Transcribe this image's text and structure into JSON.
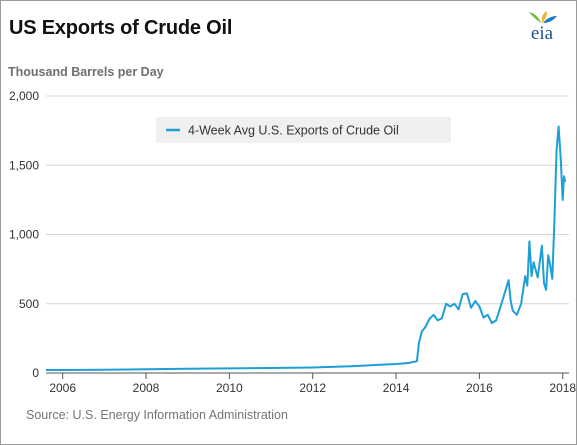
{
  "title": "US Exports of Crude Oil",
  "logo_text": "eia",
  "source": "Source: U.S. Energy Information Administration",
  "colors": {
    "series": "#1e9fd6",
    "grid": "#d6d6d6",
    "legend_bg": "#f0f0f0",
    "logo_leaf_green": "#7ab648",
    "logo_leaf_yellow": "#f2b233",
    "logo_leaf_blue": "#1f79c1"
  },
  "chart_data": {
    "type": "line",
    "title": "US Exports of Crude Oil",
    "ylabel": "Thousand Barrels per Day",
    "xlabel": "",
    "xlim": [
      2005.6,
      2018.15
    ],
    "ylim": [
      0,
      2000
    ],
    "x_ticks": [
      2006,
      2008,
      2010,
      2012,
      2014,
      2016,
      2018
    ],
    "x_tick_labels": [
      "2006",
      "2008",
      "2010",
      "2012",
      "2014",
      "2016",
      "2018"
    ],
    "y_ticks": [
      0,
      500,
      1000,
      1500,
      2000
    ],
    "y_tick_labels": [
      "0",
      "500",
      "1,000",
      "1,500",
      "2,000"
    ],
    "grid": "horizontal",
    "legend": {
      "position": "top-center"
    },
    "series": [
      {
        "name": "4-Week Avg U.S. Exports of Crude Oil",
        "points": [
          [
            2005.6,
            22
          ],
          [
            2006.0,
            22
          ],
          [
            2007.0,
            24
          ],
          [
            2008.0,
            27
          ],
          [
            2009.0,
            30
          ],
          [
            2010.0,
            33
          ],
          [
            2011.0,
            36
          ],
          [
            2012.0,
            40
          ],
          [
            2013.0,
            50
          ],
          [
            2013.5,
            58
          ],
          [
            2014.0,
            65
          ],
          [
            2014.3,
            72
          ],
          [
            2014.5,
            85
          ],
          [
            2014.55,
            220
          ],
          [
            2014.62,
            300
          ],
          [
            2014.7,
            330
          ],
          [
            2014.8,
            390
          ],
          [
            2014.9,
            420
          ],
          [
            2015.0,
            380
          ],
          [
            2015.1,
            395
          ],
          [
            2015.2,
            500
          ],
          [
            2015.3,
            480
          ],
          [
            2015.4,
            500
          ],
          [
            2015.5,
            460
          ],
          [
            2015.6,
            570
          ],
          [
            2015.7,
            575
          ],
          [
            2015.8,
            470
          ],
          [
            2015.9,
            520
          ],
          [
            2016.0,
            480
          ],
          [
            2016.1,
            400
          ],
          [
            2016.2,
            420
          ],
          [
            2016.3,
            360
          ],
          [
            2016.4,
            380
          ],
          [
            2016.5,
            470
          ],
          [
            2016.6,
            570
          ],
          [
            2016.7,
            670
          ],
          [
            2016.75,
            520
          ],
          [
            2016.8,
            450
          ],
          [
            2016.9,
            420
          ],
          [
            2017.0,
            500
          ],
          [
            2017.05,
            600
          ],
          [
            2017.1,
            700
          ],
          [
            2017.15,
            630
          ],
          [
            2017.2,
            950
          ],
          [
            2017.25,
            700
          ],
          [
            2017.3,
            800
          ],
          [
            2017.4,
            690
          ],
          [
            2017.5,
            920
          ],
          [
            2017.55,
            650
          ],
          [
            2017.6,
            600
          ],
          [
            2017.65,
            850
          ],
          [
            2017.7,
            780
          ],
          [
            2017.75,
            680
          ],
          [
            2017.8,
            1100
          ],
          [
            2017.85,
            1600
          ],
          [
            2017.9,
            1780
          ],
          [
            2017.95,
            1550
          ],
          [
            2018.0,
            1250
          ],
          [
            2018.03,
            1420
          ],
          [
            2018.06,
            1380
          ]
        ]
      }
    ]
  }
}
